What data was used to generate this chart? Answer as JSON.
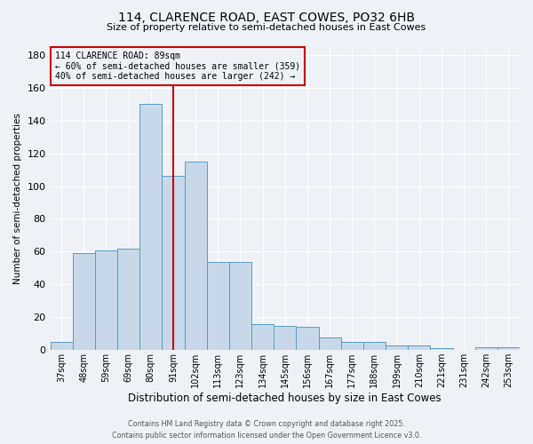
{
  "title1": "114, CLARENCE ROAD, EAST COWES, PO32 6HB",
  "title2": "Size of property relative to semi-detached houses in East Cowes",
  "xlabel": "Distribution of semi-detached houses by size in East Cowes",
  "ylabel": "Number of semi-detached properties",
  "bin_labels": [
    "37sqm",
    "48sqm",
    "59sqm",
    "69sqm",
    "80sqm",
    "91sqm",
    "102sqm",
    "113sqm",
    "123sqm",
    "134sqm",
    "145sqm",
    "156sqm",
    "167sqm",
    "177sqm",
    "188sqm",
    "199sqm",
    "210sqm",
    "221sqm",
    "231sqm",
    "242sqm",
    "253sqm"
  ],
  "bar_heights": [
    5,
    59,
    61,
    62,
    150,
    106,
    115,
    54,
    54,
    16,
    15,
    14,
    8,
    5,
    5,
    3,
    3,
    1,
    0,
    2,
    2
  ],
  "bar_color": "#c8d8e8",
  "bar_edgecolor": "#5a9cc5",
  "red_line_x": 5.5,
  "red_line_color": "#cc0000",
  "annotation_title": "114 CLARENCE ROAD: 89sqm",
  "annotation_line1": "← 60% of semi-detached houses are smaller (359)",
  "annotation_line2": "40% of semi-detached houses are larger (242) →",
  "annotation_box_color": "#cc0000",
  "footnote1": "Contains HM Land Registry data © Crown copyright and database right 2025.",
  "footnote2": "Contains public sector information licensed under the Open Government Licence v3.0.",
  "ylim": [
    0,
    185
  ],
  "yticks": [
    0,
    20,
    40,
    60,
    80,
    100,
    120,
    140,
    160,
    180
  ],
  "background_color": "#eef2f7",
  "grid_color": "#ffffff"
}
